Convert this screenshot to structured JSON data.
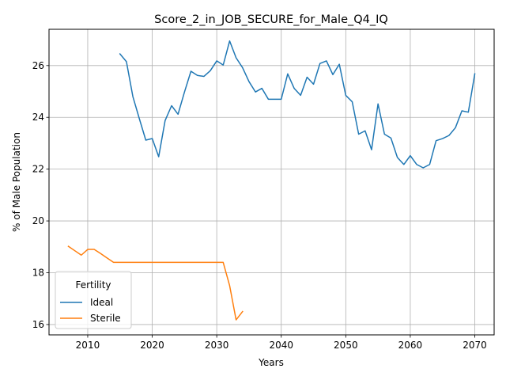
{
  "chart_data": {
    "type": "line",
    "title": "Score_2_in_JOB_SECURE_for_Male_Q4_IQ",
    "xlabel": "Years",
    "ylabel": "% of Male Population",
    "xlim": [
      2004,
      2073
    ],
    "ylim": [
      15.6,
      27.4
    ],
    "xticks": [
      2010,
      2020,
      2030,
      2040,
      2050,
      2060,
      2070
    ],
    "yticks": [
      16,
      18,
      20,
      22,
      24,
      26
    ],
    "grid": true,
    "legend": {
      "title": "Fertility",
      "placement": "lower-left"
    },
    "series": [
      {
        "name": "Ideal",
        "color": "#1f77b4",
        "x": [
          2015,
          2016,
          2017,
          2018,
          2019,
          2020,
          2021,
          2022,
          2023,
          2024,
          2025,
          2026,
          2027,
          2028,
          2029,
          2030,
          2031,
          2032,
          2033,
          2034,
          2035,
          2036,
          2037,
          2038,
          2039,
          2040,
          2041,
          2042,
          2043,
          2044,
          2045,
          2046,
          2047,
          2048,
          2049,
          2050,
          2051,
          2052,
          2053,
          2054,
          2055,
          2056,
          2057,
          2058,
          2059,
          2060,
          2061,
          2062,
          2063,
          2064,
          2065,
          2066,
          2067,
          2068,
          2069,
          2070
        ],
        "y": [
          26.45,
          26.15,
          24.8,
          23.95,
          23.12,
          23.18,
          22.48,
          23.88,
          24.45,
          24.12,
          24.98,
          25.78,
          25.62,
          25.58,
          25.8,
          26.18,
          26.02,
          26.95,
          26.3,
          25.92,
          25.38,
          24.98,
          25.12,
          24.7,
          24.7,
          24.7,
          25.68,
          25.12,
          24.85,
          25.55,
          25.28,
          26.08,
          26.18,
          25.65,
          26.05,
          24.85,
          24.6,
          23.35,
          23.48,
          22.75,
          24.52,
          23.35,
          23.2,
          22.45,
          22.18,
          22.52,
          22.18,
          22.05,
          22.18,
          23.1,
          23.18,
          23.3,
          23.6,
          24.25,
          24.2,
          25.68
        ]
      },
      {
        "name": "Sterile",
        "color": "#ff7f0e",
        "x": [
          2007,
          2008,
          2009,
          2010,
          2011,
          2012,
          2013,
          2014,
          2015,
          2016,
          2017,
          2018,
          2019,
          2020,
          2021,
          2022,
          2023,
          2024,
          2025,
          2026,
          2027,
          2028,
          2029,
          2030,
          2031,
          2032,
          2033,
          2034
        ],
        "y": [
          19.02,
          18.85,
          18.68,
          18.9,
          18.9,
          18.74,
          18.57,
          18.4,
          18.4,
          18.4,
          18.4,
          18.4,
          18.4,
          18.4,
          18.4,
          18.4,
          18.4,
          18.4,
          18.4,
          18.4,
          18.4,
          18.4,
          18.4,
          18.4,
          18.4,
          17.5,
          16.18,
          16.5
        ]
      }
    ]
  }
}
